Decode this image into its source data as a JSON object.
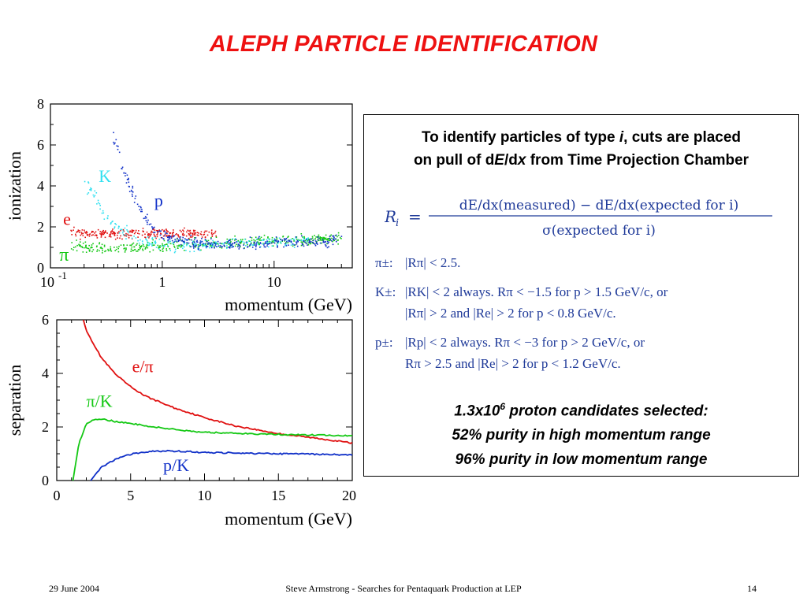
{
  "slide": {
    "title": "ALEPH PARTICLE IDENTIFICATION",
    "footer_date": "29 June 2004",
    "footer_center": "Steve Armstrong - Searches for Pentaquark Production at LEP",
    "footer_page": "14"
  },
  "box": {
    "intro_line1_a": "To identify particles of type ",
    "intro_line1_i": "i",
    "intro_line1_b": ", cuts are placed",
    "intro_line2_a": "on pull of d",
    "intro_line2_E": "E",
    "intro_line2_slash": "/d",
    "intro_line2_x": "x",
    "intro_line2_b": " from Time Projection Chamber",
    "formula_lhs": "R",
    "formula_lhs_sub": "i",
    "formula_eq": "=",
    "formula_numerator": "dE/dx(measured) − dE/dx(expected for i)",
    "formula_denominator": "σ(expected for i)",
    "cuts": [
      {
        "label": "π±:",
        "lines": [
          "|Rπ| < 2.5."
        ]
      },
      {
        "label": "K±:",
        "lines": [
          "|RK| < 2 always. Rπ < −1.5 for p > 1.5 GeV/c, or",
          "|Rπ| > 2 and |Re| > 2 for p < 0.8 GeV/c."
        ]
      },
      {
        "label": "p±:",
        "lines": [
          "|Rp| < 2 always. Rπ < −3 for p > 2 GeV/c, or",
          "Rπ > 2.5 and |Re| > 2 for p < 1.2 GeV/c."
        ]
      }
    ],
    "summary_line1_a": "1.3x10",
    "summary_line1_sup": "6",
    "summary_line1_b": " proton candidates selected:",
    "summary_line2": "52% purity in high momentum range",
    "summary_line3": "96% purity in low momentum range"
  },
  "chart_data": [
    {
      "type": "scatter",
      "ylabel": "ionization",
      "xlabel": "momentum (GeV)",
      "x_scale": "log",
      "xlim": [
        0.1,
        50
      ],
      "ylim": [
        0,
        8
      ],
      "x_tick_labels": [
        "10",
        "-1",
        "1",
        "10"
      ],
      "y_tick_labels": [
        "0",
        "2",
        "4",
        "6",
        "8"
      ],
      "series": [
        {
          "name": "π",
          "color": "#14c814",
          "x": [
            0.15,
            0.3,
            0.5,
            1,
            2,
            5,
            10,
            20,
            40
          ],
          "y": [
            1.05,
            1.0,
            1.02,
            1.1,
            1.2,
            1.3,
            1.35,
            1.4,
            1.45
          ]
        },
        {
          "name": "e",
          "color": "#e01010",
          "x": [
            0.15,
            0.3,
            0.5,
            1,
            2,
            3
          ],
          "y": [
            1.7,
            1.7,
            1.7,
            1.7,
            1.7,
            1.7
          ]
        },
        {
          "name": "K",
          "color": "#30e0f0",
          "x": [
            0.2,
            0.3,
            0.4,
            0.6,
            1,
            2,
            5,
            20
          ],
          "y": [
            4.2,
            2.6,
            1.9,
            1.4,
            1.15,
            1.1,
            1.2,
            1.35
          ]
        },
        {
          "name": "p",
          "color": "#1030c8",
          "x": [
            0.35,
            0.45,
            0.6,
            0.8,
            1,
            1.5,
            3,
            10,
            40
          ],
          "y": [
            7.0,
            4.6,
            3.0,
            2.0,
            1.6,
            1.3,
            1.15,
            1.25,
            1.4
          ]
        }
      ]
    },
    {
      "type": "line",
      "ylabel": "separation",
      "xlabel": "momentum (GeV)",
      "xlim": [
        0,
        20
      ],
      "ylim": [
        0,
        6
      ],
      "x_tick_labels": [
        "0",
        "5",
        "10",
        "15",
        "20"
      ],
      "y_tick_labels": [
        "0",
        "2",
        "4",
        "6"
      ],
      "series": [
        {
          "name": "e/π",
          "color": "#e01010",
          "x": [
            1.8,
            2,
            3,
            4,
            5,
            6,
            8,
            10,
            12,
            15,
            18,
            20
          ],
          "y": [
            6,
            5.6,
            4.6,
            3.95,
            3.5,
            3.15,
            2.7,
            2.35,
            2.05,
            1.75,
            1.55,
            1.4
          ]
        },
        {
          "name": "π/K",
          "color": "#14c814",
          "x": [
            1.1,
            1.5,
            2,
            2.5,
            3,
            4,
            6,
            8,
            10,
            15,
            20
          ],
          "y": [
            0,
            1.4,
            2.1,
            2.28,
            2.3,
            2.2,
            2.05,
            1.9,
            1.8,
            1.72,
            1.68
          ]
        },
        {
          "name": "p/K",
          "color": "#1030c8",
          "x": [
            2.3,
            3,
            4,
            5,
            6,
            7,
            8,
            10,
            15,
            20
          ],
          "y": [
            0,
            0.5,
            0.8,
            0.98,
            1.07,
            1.1,
            1.1,
            1.05,
            1.0,
            0.96
          ]
        }
      ]
    }
  ]
}
